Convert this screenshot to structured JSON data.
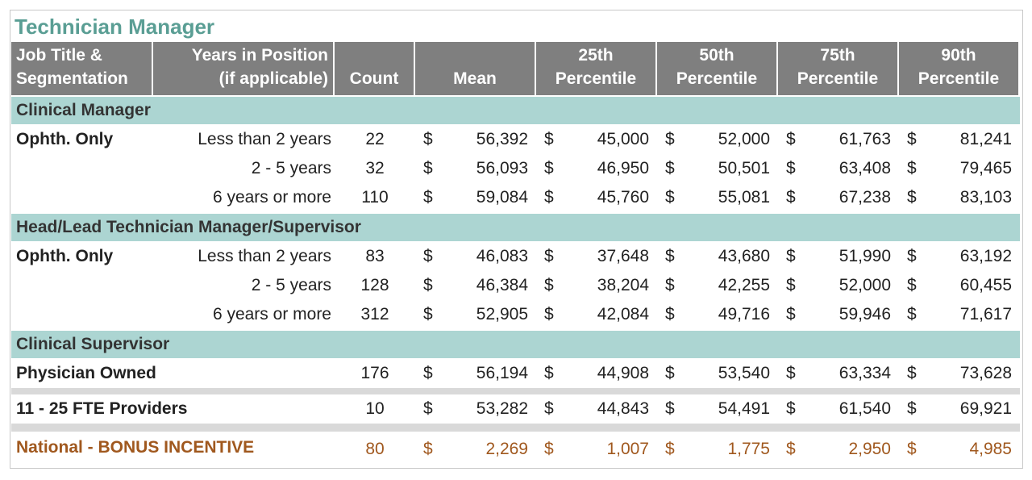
{
  "title": "Technician Manager",
  "currency": "$",
  "columns": [
    [
      "Job Title &",
      "Segmentation"
    ],
    [
      "Years in Position",
      "(if applicable)"
    ],
    [
      "Count"
    ],
    [
      "Mean"
    ],
    [
      "25th",
      "Percentile"
    ],
    [
      "50th",
      "Percentile"
    ],
    [
      "75th",
      "Percentile"
    ],
    [
      "90th",
      "Percentile"
    ]
  ],
  "sections": [
    {
      "title": "Clinical Manager",
      "rows": [
        {
          "segment": "Ophth. Only",
          "years": "Less than 2 years",
          "count": 22,
          "values": [
            "56,392",
            "45,000",
            "52,000",
            "61,763",
            "81,241"
          ]
        },
        {
          "years": "2 - 5 years",
          "count": 32,
          "values": [
            "56,093",
            "46,950",
            "50,501",
            "63,408",
            "79,465"
          ]
        },
        {
          "years": "6 years or more",
          "count": 110,
          "values": [
            "59,084",
            "45,760",
            "55,081",
            "67,238",
            "83,103"
          ]
        }
      ]
    },
    {
      "title": "Head/Lead Technician Manager/Supervisor",
      "rows": [
        {
          "segment": "Ophth. Only",
          "years": "Less than 2 years",
          "count": 83,
          "values": [
            "46,083",
            "37,648",
            "43,680",
            "51,990",
            "63,192"
          ]
        },
        {
          "years": "2 - 5 years",
          "count": 128,
          "values": [
            "46,384",
            "38,204",
            "42,255",
            "52,000",
            "60,455"
          ]
        },
        {
          "years": "6 years or more",
          "count": 312,
          "values": [
            "52,905",
            "42,084",
            "49,716",
            "59,946",
            "71,617"
          ]
        }
      ]
    },
    {
      "title": "Clinical Supervisor",
      "rows": [
        {
          "segment": "Physician Owned",
          "count": 176,
          "values": [
            "56,194",
            "44,908",
            "53,540",
            "63,334",
            "73,628"
          ]
        },
        {
          "segment": "11 - 25 FTE Providers",
          "count": 10,
          "values": [
            "53,282",
            "44,843",
            "54,491",
            "61,540",
            "69,921"
          ]
        }
      ]
    }
  ],
  "bonus": {
    "label": "National - BONUS INCENTIVE",
    "count": 80,
    "values": [
      "2,269",
      "1,007",
      "1,775",
      "2,950",
      "4,985"
    ]
  }
}
